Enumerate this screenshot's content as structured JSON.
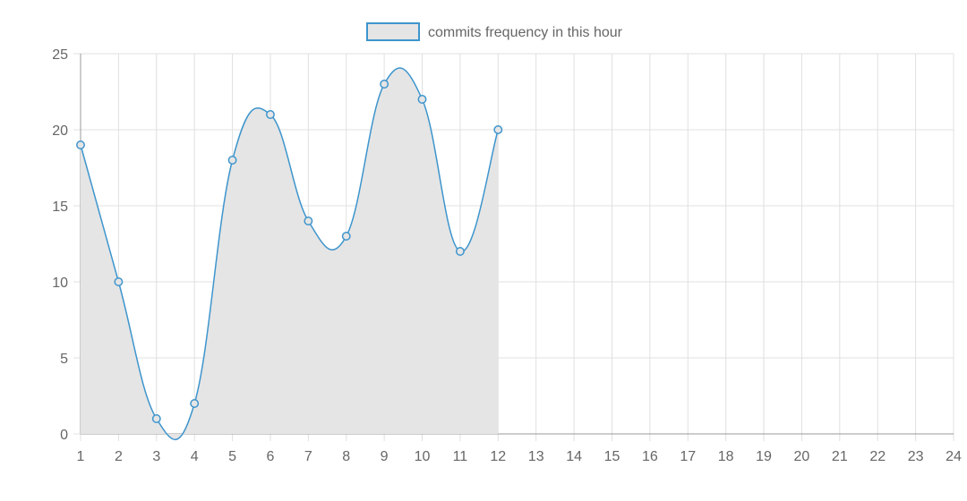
{
  "chart_data": {
    "type": "line",
    "x": [
      1,
      2,
      3,
      4,
      5,
      6,
      7,
      8,
      9,
      10,
      11,
      12
    ],
    "categories": [
      "1",
      "2",
      "3",
      "4",
      "5",
      "6",
      "7",
      "8",
      "9",
      "10",
      "11",
      "12",
      "13",
      "14",
      "15",
      "16",
      "17",
      "18",
      "19",
      "20",
      "21",
      "22",
      "23",
      "24"
    ],
    "series": [
      {
        "name": "commits frequency in this hour",
        "values": [
          19,
          10,
          1,
          2,
          18,
          21,
          14,
          13,
          23,
          22,
          12,
          20
        ]
      }
    ],
    "yticks": [
      "0",
      "5",
      "10",
      "15",
      "20",
      "25"
    ],
    "ylim": [
      0,
      25
    ],
    "xlim": [
      1,
      24
    ],
    "grid": true,
    "legend": "top-center",
    "colors": {
      "line": "#3e95cd",
      "fill": "#e5e5e5",
      "grid": "#e0e0e0",
      "axis": "#999999",
      "legend_fill": "#e5e5e5"
    }
  }
}
